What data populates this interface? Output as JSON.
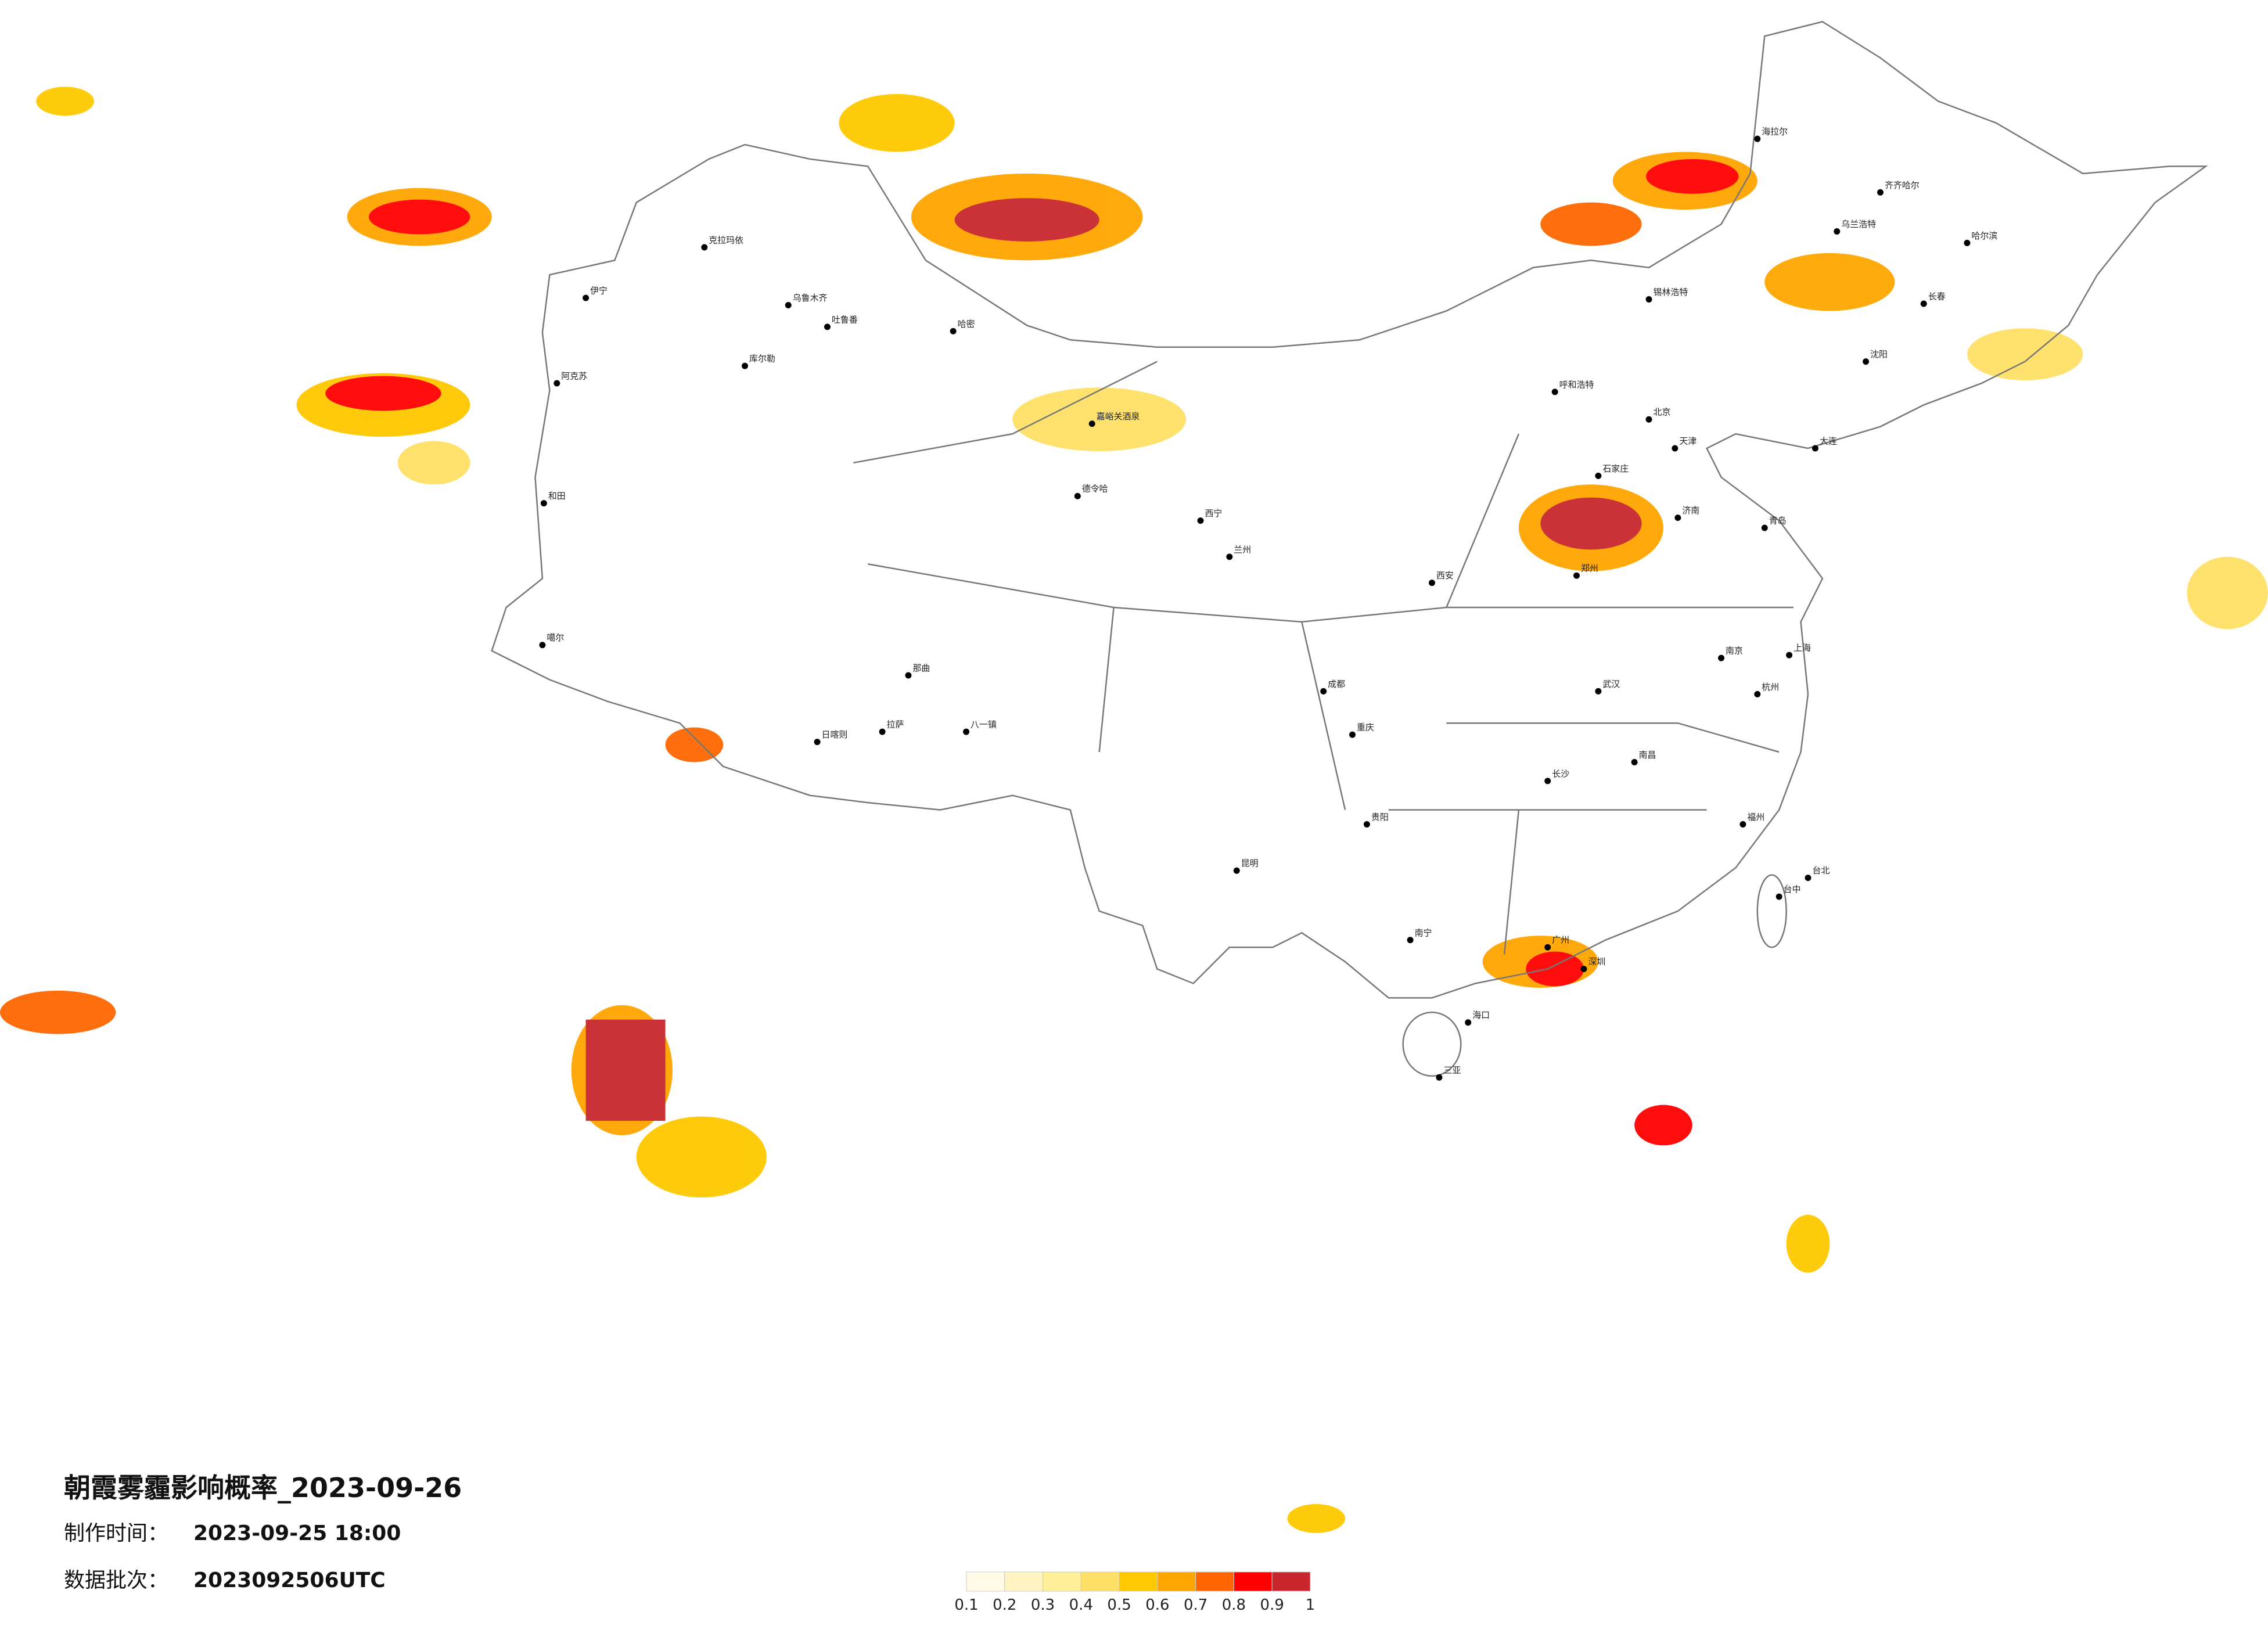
{
  "title": "朝霞雾霾影响概率_2023-09-26",
  "made_label": "制作时间：",
  "made_time": "2023-09-25 18:00",
  "batch_label": "数据批次：",
  "batch": "2023092506UTC",
  "colorbar": {
    "ticks": [
      0.1,
      0.2,
      0.3,
      0.4,
      0.5,
      0.6,
      0.7,
      0.8,
      0.9,
      1
    ],
    "colors": [
      "#fffbe6",
      "#fff4c2",
      "#ffef99",
      "#ffe066",
      "#ffc800",
      "#ffa500",
      "#ff6600",
      "#ff0000",
      "#c8282d"
    ]
  },
  "cities": [
    "克拉玛依",
    "伊宁",
    "乌鲁木齐",
    "吐鲁番",
    "哈密",
    "库尔勒",
    "阿克苏",
    "和田",
    "噶尔",
    "日喀则",
    "拉萨",
    "八一镇",
    "那曲",
    "嘉峪关酒泉",
    "德令哈",
    "西宁",
    "兰州",
    "呼和浩特",
    "北京",
    "天津",
    "石家庄",
    "郑州",
    "西安",
    "成都",
    "重庆",
    "武汉",
    "长沙",
    "南昌",
    "杭州",
    "上海",
    "南京",
    "福州",
    "广州",
    "深圳",
    "南宁",
    "昆明",
    "贵阳",
    "海口",
    "三亚",
    "哈尔滨",
    "长春",
    "沈阳",
    "大连",
    "济南",
    "青岛",
    "台北",
    "台中",
    "齐齐哈尔",
    "海拉尔",
    "锡林浩特",
    "乌兰浩特"
  ]
}
